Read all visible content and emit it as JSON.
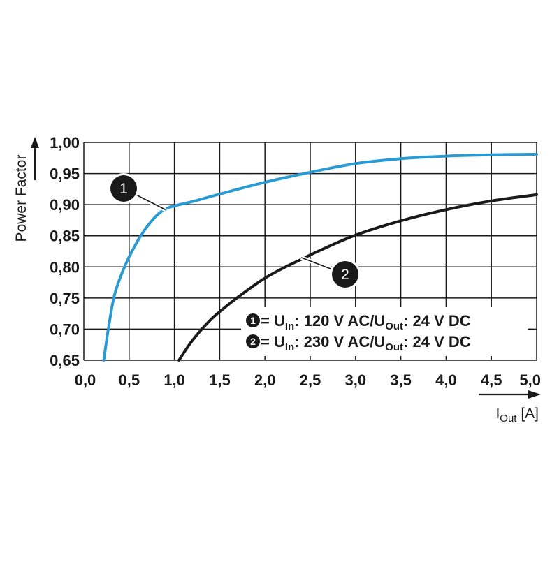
{
  "chart_data": {
    "type": "line",
    "xlabel": {
      "main": "I",
      "sub": "Out",
      "unit": " [A]"
    },
    "ylabel": "Power Factor",
    "xlim": [
      0,
      5
    ],
    "ylim": [
      0.65,
      1.0
    ],
    "x_ticks": [
      "0,0",
      "0,5",
      "1,0",
      "1,5",
      "2,0",
      "2,5",
      "3,0",
      "3,5",
      "4,0",
      "4,5",
      "5,0"
    ],
    "y_ticks": [
      "1,00",
      "0,95",
      "0,90",
      "0,85",
      "0,80",
      "0,75",
      "0,70",
      "0,65"
    ],
    "grid": true,
    "series": [
      {
        "id": "1",
        "color": "#2a9ad3",
        "x": [
          0.22,
          0.27,
          0.33,
          0.4,
          0.48,
          0.55,
          0.62,
          0.7,
          0.8,
          0.9,
          1.0,
          1.2,
          1.5,
          2.0,
          2.5,
          3.0,
          3.5,
          4.0,
          4.5,
          5.0
        ],
        "y": [
          0.65,
          0.7,
          0.75,
          0.782,
          0.81,
          0.83,
          0.848,
          0.865,
          0.882,
          0.893,
          0.898,
          0.905,
          0.917,
          0.936,
          0.952,
          0.966,
          0.974,
          0.978,
          0.98,
          0.981
        ]
      },
      {
        "id": "2",
        "color": "#1a1a1a",
        "x": [
          1.05,
          1.2,
          1.4,
          1.6,
          1.8,
          2.0,
          2.2,
          2.4,
          2.6,
          3.0,
          3.5,
          4.0,
          4.5,
          5.0
        ],
        "y": [
          0.65,
          0.682,
          0.715,
          0.74,
          0.762,
          0.782,
          0.798,
          0.812,
          0.826,
          0.851,
          0.874,
          0.892,
          0.906,
          0.916
        ]
      }
    ],
    "callouts": [
      {
        "label": "1",
        "anchor_x": 0.9,
        "anchor_y": 0.892
      },
      {
        "label": "2",
        "anchor_x": 2.4,
        "anchor_y": 0.815
      }
    ],
    "legend": [
      {
        "badge": "1",
        "pre": " = U",
        "sub1": "In",
        "mid": ": 120 V AC/U",
        "sub2": "Out",
        "post": ": 24 V DC"
      },
      {
        "badge": "2",
        "pre": " = U",
        "sub1": "In",
        "mid": ": 230 V AC/U",
        "sub2": "Out",
        "post": ": 24 V DC"
      }
    ],
    "legend_position": "bottom-right"
  }
}
